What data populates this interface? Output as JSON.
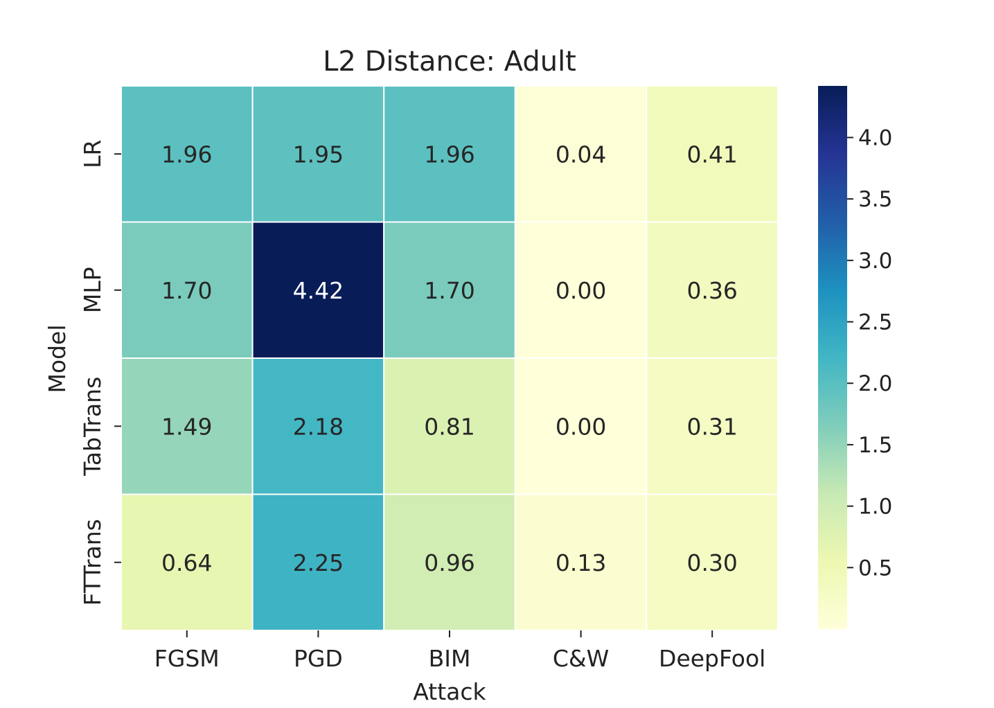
{
  "chart_data": {
    "type": "heatmap",
    "title": "L2 Distance: Adult",
    "xlabel": "Attack",
    "ylabel": "Model",
    "x_categories": [
      "FGSM",
      "PGD",
      "BIM",
      "C&W",
      "DeepFool"
    ],
    "y_categories": [
      "LR",
      "MLP",
      "TabTrans",
      "FTTrans"
    ],
    "values": [
      [
        1.96,
        1.95,
        1.96,
        0.04,
        0.41
      ],
      [
        1.7,
        4.42,
        1.7,
        0.0,
        0.36
      ],
      [
        1.49,
        2.18,
        0.81,
        0.0,
        0.31
      ],
      [
        0.64,
        2.25,
        0.96,
        0.13,
        0.3
      ]
    ],
    "value_format": "2 decimals",
    "colormap": "YlGnBu",
    "colorbar": {
      "range": [
        0.0,
        4.42
      ],
      "ticks": [
        0.5,
        1.0,
        1.5,
        2.0,
        2.5,
        3.0,
        3.5,
        4.0
      ],
      "tick_labels": [
        "0.5",
        "1.0",
        "1.5",
        "2.0",
        "2.5",
        "3.0",
        "3.5",
        "4.0"
      ]
    },
    "grid_lines": "white",
    "legend": "colorbar right"
  },
  "colors": {
    "cell_border": "#ffffff",
    "text_dark": "#262626",
    "text_light": "#ffffff",
    "axis": "#222222"
  }
}
